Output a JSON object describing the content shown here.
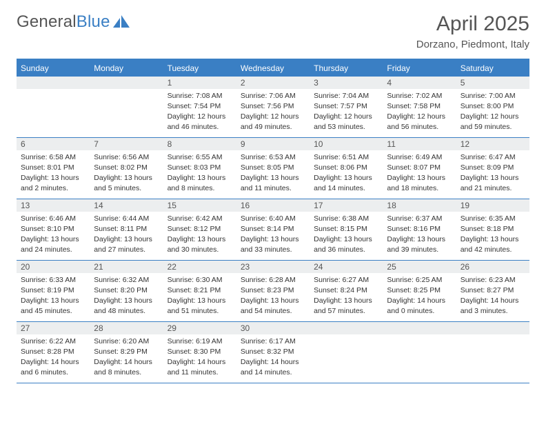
{
  "brand": {
    "general": "General",
    "blue": "Blue"
  },
  "title": "April 2025",
  "subtitle": "Dorzano, Piedmont, Italy",
  "palette": {
    "accent": "#3a7fc4",
    "headrow_bg": "#eceeef",
    "text": "#333333",
    "muted": "#555555",
    "page_bg": "#ffffff"
  },
  "day_headers": [
    "Sunday",
    "Monday",
    "Tuesday",
    "Wednesday",
    "Thursday",
    "Friday",
    "Saturday"
  ],
  "weeks": [
    [
      {
        "n": "",
        "sunrise": "",
        "sunset": "",
        "daylight": ""
      },
      {
        "n": "",
        "sunrise": "",
        "sunset": "",
        "daylight": ""
      },
      {
        "n": "1",
        "sunrise": "Sunrise: 7:08 AM",
        "sunset": "Sunset: 7:54 PM",
        "daylight": "Daylight: 12 hours and 46 minutes."
      },
      {
        "n": "2",
        "sunrise": "Sunrise: 7:06 AM",
        "sunset": "Sunset: 7:56 PM",
        "daylight": "Daylight: 12 hours and 49 minutes."
      },
      {
        "n": "3",
        "sunrise": "Sunrise: 7:04 AM",
        "sunset": "Sunset: 7:57 PM",
        "daylight": "Daylight: 12 hours and 53 minutes."
      },
      {
        "n": "4",
        "sunrise": "Sunrise: 7:02 AM",
        "sunset": "Sunset: 7:58 PM",
        "daylight": "Daylight: 12 hours and 56 minutes."
      },
      {
        "n": "5",
        "sunrise": "Sunrise: 7:00 AM",
        "sunset": "Sunset: 8:00 PM",
        "daylight": "Daylight: 12 hours and 59 minutes."
      }
    ],
    [
      {
        "n": "6",
        "sunrise": "Sunrise: 6:58 AM",
        "sunset": "Sunset: 8:01 PM",
        "daylight": "Daylight: 13 hours and 2 minutes."
      },
      {
        "n": "7",
        "sunrise": "Sunrise: 6:56 AM",
        "sunset": "Sunset: 8:02 PM",
        "daylight": "Daylight: 13 hours and 5 minutes."
      },
      {
        "n": "8",
        "sunrise": "Sunrise: 6:55 AM",
        "sunset": "Sunset: 8:03 PM",
        "daylight": "Daylight: 13 hours and 8 minutes."
      },
      {
        "n": "9",
        "sunrise": "Sunrise: 6:53 AM",
        "sunset": "Sunset: 8:05 PM",
        "daylight": "Daylight: 13 hours and 11 minutes."
      },
      {
        "n": "10",
        "sunrise": "Sunrise: 6:51 AM",
        "sunset": "Sunset: 8:06 PM",
        "daylight": "Daylight: 13 hours and 14 minutes."
      },
      {
        "n": "11",
        "sunrise": "Sunrise: 6:49 AM",
        "sunset": "Sunset: 8:07 PM",
        "daylight": "Daylight: 13 hours and 18 minutes."
      },
      {
        "n": "12",
        "sunrise": "Sunrise: 6:47 AM",
        "sunset": "Sunset: 8:09 PM",
        "daylight": "Daylight: 13 hours and 21 minutes."
      }
    ],
    [
      {
        "n": "13",
        "sunrise": "Sunrise: 6:46 AM",
        "sunset": "Sunset: 8:10 PM",
        "daylight": "Daylight: 13 hours and 24 minutes."
      },
      {
        "n": "14",
        "sunrise": "Sunrise: 6:44 AM",
        "sunset": "Sunset: 8:11 PM",
        "daylight": "Daylight: 13 hours and 27 minutes."
      },
      {
        "n": "15",
        "sunrise": "Sunrise: 6:42 AM",
        "sunset": "Sunset: 8:12 PM",
        "daylight": "Daylight: 13 hours and 30 minutes."
      },
      {
        "n": "16",
        "sunrise": "Sunrise: 6:40 AM",
        "sunset": "Sunset: 8:14 PM",
        "daylight": "Daylight: 13 hours and 33 minutes."
      },
      {
        "n": "17",
        "sunrise": "Sunrise: 6:38 AM",
        "sunset": "Sunset: 8:15 PM",
        "daylight": "Daylight: 13 hours and 36 minutes."
      },
      {
        "n": "18",
        "sunrise": "Sunrise: 6:37 AM",
        "sunset": "Sunset: 8:16 PM",
        "daylight": "Daylight: 13 hours and 39 minutes."
      },
      {
        "n": "19",
        "sunrise": "Sunrise: 6:35 AM",
        "sunset": "Sunset: 8:18 PM",
        "daylight": "Daylight: 13 hours and 42 minutes."
      }
    ],
    [
      {
        "n": "20",
        "sunrise": "Sunrise: 6:33 AM",
        "sunset": "Sunset: 8:19 PM",
        "daylight": "Daylight: 13 hours and 45 minutes."
      },
      {
        "n": "21",
        "sunrise": "Sunrise: 6:32 AM",
        "sunset": "Sunset: 8:20 PM",
        "daylight": "Daylight: 13 hours and 48 minutes."
      },
      {
        "n": "22",
        "sunrise": "Sunrise: 6:30 AM",
        "sunset": "Sunset: 8:21 PM",
        "daylight": "Daylight: 13 hours and 51 minutes."
      },
      {
        "n": "23",
        "sunrise": "Sunrise: 6:28 AM",
        "sunset": "Sunset: 8:23 PM",
        "daylight": "Daylight: 13 hours and 54 minutes."
      },
      {
        "n": "24",
        "sunrise": "Sunrise: 6:27 AM",
        "sunset": "Sunset: 8:24 PM",
        "daylight": "Daylight: 13 hours and 57 minutes."
      },
      {
        "n": "25",
        "sunrise": "Sunrise: 6:25 AM",
        "sunset": "Sunset: 8:25 PM",
        "daylight": "Daylight: 14 hours and 0 minutes."
      },
      {
        "n": "26",
        "sunrise": "Sunrise: 6:23 AM",
        "sunset": "Sunset: 8:27 PM",
        "daylight": "Daylight: 14 hours and 3 minutes."
      }
    ],
    [
      {
        "n": "27",
        "sunrise": "Sunrise: 6:22 AM",
        "sunset": "Sunset: 8:28 PM",
        "daylight": "Daylight: 14 hours and 6 minutes."
      },
      {
        "n": "28",
        "sunrise": "Sunrise: 6:20 AM",
        "sunset": "Sunset: 8:29 PM",
        "daylight": "Daylight: 14 hours and 8 minutes."
      },
      {
        "n": "29",
        "sunrise": "Sunrise: 6:19 AM",
        "sunset": "Sunset: 8:30 PM",
        "daylight": "Daylight: 14 hours and 11 minutes."
      },
      {
        "n": "30",
        "sunrise": "Sunrise: 6:17 AM",
        "sunset": "Sunset: 8:32 PM",
        "daylight": "Daylight: 14 hours and 14 minutes."
      },
      {
        "n": "",
        "sunrise": "",
        "sunset": "",
        "daylight": ""
      },
      {
        "n": "",
        "sunrise": "",
        "sunset": "",
        "daylight": ""
      },
      {
        "n": "",
        "sunrise": "",
        "sunset": "",
        "daylight": ""
      }
    ]
  ]
}
